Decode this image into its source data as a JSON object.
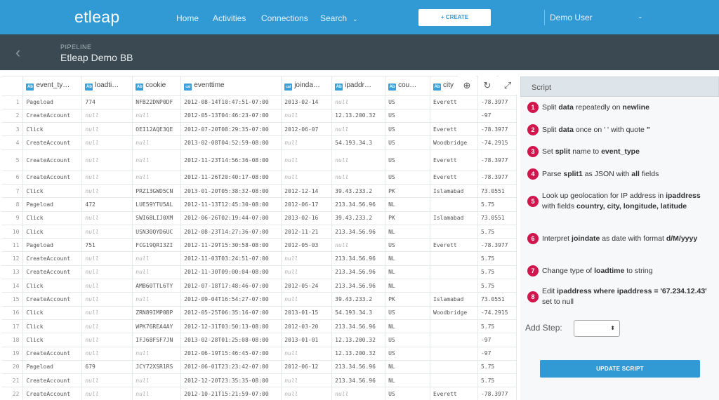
{
  "app": {
    "logo": "etleap",
    "nav": [
      "Home",
      "Activities",
      "Connections",
      "Search"
    ],
    "nav_search_chevron": "⌄",
    "create_label": "+ CREATE",
    "user": "Demo User",
    "user_chevron": "⌄"
  },
  "pipeline": {
    "back_icon": "‹",
    "label": "PIPELINE",
    "name": "Etleap Demo BB"
  },
  "grid": {
    "columns": [
      {
        "name": "event_ty…",
        "type": "Ab"
      },
      {
        "name": "loadti…",
        "type": "Ab"
      },
      {
        "name": "cookie",
        "type": "Ab"
      },
      {
        "name": "eventtime",
        "type": "cal"
      },
      {
        "name": "joinda…",
        "type": "cal"
      },
      {
        "name": "ipaddr…",
        "type": "Ab"
      },
      {
        "name": "cou…",
        "type": "Ab"
      },
      {
        "name": "city",
        "type": "Ab"
      }
    ],
    "tools": {
      "zoom": "⊕",
      "refresh": "↻",
      "expand": "⤢"
    },
    "rows": [
      [
        "1",
        "Pageload",
        "774",
        "NFB22DNP0DF",
        "2012-08-14T10:47:51-07:00",
        "2013-02-14",
        "null",
        "US",
        "Everett",
        "-78.3977"
      ],
      [
        "2",
        "CreateAccount",
        "null",
        "null",
        "2012-05-13T04:46:23-07:00",
        "null",
        "12.13.200.32",
        "US",
        "",
        "-97"
      ],
      [
        "3",
        "Click",
        "null",
        "OEI12AQE3QE",
        "2012-07-20T08:29:35-07:00",
        "2012-06-07",
        "null",
        "US",
        "Everett",
        "-78.3977"
      ],
      [
        "4",
        "CreateAccount",
        "null",
        "null",
        "2013-02-08T04:52:59-08:00",
        "null",
        "54.193.34.3",
        "US",
        "Woodbridge",
        "-74.2915"
      ],
      [
        "5",
        "CreateAccount",
        "null",
        "null",
        "2012-11-23T14:56:36-08:00",
        "null",
        "null",
        "US",
        "Everett",
        "-78.3977"
      ],
      [
        "6",
        "CreateAccount",
        "null",
        "null",
        "2012-11-26T20:40:17-08:00",
        "null",
        "null",
        "US",
        "Everett",
        "-78.3977"
      ],
      [
        "7",
        "Click",
        "null",
        "PRZ13GWD5CN",
        "2013-01-20T05:38:32-08:00",
        "2012-12-14",
        "39.43.233.2",
        "PK",
        "Islamabad",
        "73.0551"
      ],
      [
        "8",
        "Pageload",
        "472",
        "LUE59YTU5AL",
        "2012-11-13T12:45:30-08:00",
        "2012-06-17",
        "213.34.56.96",
        "NL",
        "",
        "5.75"
      ],
      [
        "9",
        "Click",
        "null",
        "SWI68LIJ0XM",
        "2012-06-26T02:19:44-07:00",
        "2013-02-16",
        "39.43.233.2",
        "PK",
        "Islamabad",
        "73.0551"
      ],
      [
        "10",
        "Click",
        "null",
        "USN30QYD6UC",
        "2012-08-23T14:27:36-07:00",
        "2012-11-21",
        "213.34.56.96",
        "NL",
        "",
        "5.75"
      ],
      [
        "11",
        "Pageload",
        "751",
        "FCG19QRI3ZI",
        "2012-11-29T15:30:58-08:00",
        "2012-05-03",
        "null",
        "US",
        "Everett",
        "-78.3977"
      ],
      [
        "12",
        "CreateAccount",
        "null",
        "null",
        "2012-11-03T03:24:51-07:00",
        "null",
        "213.34.56.96",
        "NL",
        "",
        "5.75"
      ],
      [
        "13",
        "CreateAccount",
        "null",
        "null",
        "2012-11-30T09:00:04-08:00",
        "null",
        "213.34.56.96",
        "NL",
        "",
        "5.75"
      ],
      [
        "14",
        "Click",
        "null",
        "AMB60TTL6TY",
        "2012-07-18T17:48:46-07:00",
        "2012-05-24",
        "213.34.56.96",
        "NL",
        "",
        "5.75"
      ],
      [
        "15",
        "CreateAccount",
        "null",
        "null",
        "2012-09-04T16:54:27-07:00",
        "null",
        "39.43.233.2",
        "PK",
        "Islamabad",
        "73.0551"
      ],
      [
        "16",
        "Click",
        "null",
        "ZRN89IMP0BP",
        "2012-05-25T06:35:16-07:00",
        "2013-01-15",
        "54.193.34.3",
        "US",
        "Woodbridge",
        "-74.2915"
      ],
      [
        "17",
        "Click",
        "null",
        "WPK76REA4AY",
        "2012-12-31T03:50:13-08:00",
        "2012-03-20",
        "213.34.56.96",
        "NL",
        "",
        "5.75"
      ],
      [
        "18",
        "Click",
        "null",
        "IFJ68FSF7JN",
        "2013-02-28T01:25:08-08:00",
        "2013-01-01",
        "12.13.200.32",
        "US",
        "",
        "-97"
      ],
      [
        "19",
        "CreateAccount",
        "null",
        "null",
        "2012-06-19T15:46:45-07:00",
        "null",
        "12.13.200.32",
        "US",
        "",
        "-97"
      ],
      [
        "20",
        "Pageload",
        "679",
        "JCY72XSR1RS",
        "2012-06-01T23:23:42-07:00",
        "2012-06-12",
        "213.34.56.96",
        "NL",
        "",
        "5.75"
      ],
      [
        "21",
        "CreateAccount",
        "null",
        "null",
        "2012-12-20T23:35:35-08:00",
        "null",
        "213.34.56.96",
        "NL",
        "",
        "5.75"
      ],
      [
        "22",
        "CreateAccount",
        "null",
        "null",
        "2012-10-21T15:21:59-07:00",
        "null",
        "null",
        "US",
        "Everett",
        "-78.3977"
      ]
    ]
  },
  "script": {
    "title": "Script",
    "steps": [
      {
        "num": "1",
        "parts": [
          [
            "Split ",
            false
          ],
          [
            "data",
            true
          ],
          [
            " repeatedly on ",
            false
          ],
          [
            "newline",
            true
          ]
        ]
      },
      {
        "num": "2",
        "parts": [
          [
            "Split ",
            false
          ],
          [
            "data",
            true
          ],
          [
            " once on ' ' with quote ",
            false
          ],
          [
            "\"",
            true
          ]
        ]
      },
      {
        "num": "3",
        "parts": [
          [
            "Set ",
            false
          ],
          [
            "split",
            true
          ],
          [
            " name to ",
            false
          ],
          [
            "event_type",
            true
          ]
        ]
      },
      {
        "num": "4",
        "parts": [
          [
            "Parse ",
            false
          ],
          [
            "split1",
            true
          ],
          [
            " as JSON with ",
            false
          ],
          [
            "all",
            true
          ],
          [
            " fields",
            false
          ]
        ]
      },
      {
        "num": "5",
        "parts": [
          [
            "Look up geolocation for IP address in ",
            false
          ],
          [
            "ipaddress",
            true
          ],
          [
            " with fields ",
            false
          ],
          [
            "country, city, longitude, latitude",
            true
          ]
        ]
      },
      {
        "num": "6",
        "parts": [
          [
            "Interpret ",
            false
          ],
          [
            "joindate",
            true
          ],
          [
            " as date with format ",
            false
          ],
          [
            "d/M/yyyy",
            true
          ]
        ]
      },
      {
        "num": "7",
        "parts": [
          [
            "Change type of ",
            false
          ],
          [
            "loadtime",
            true
          ],
          [
            " to string",
            false
          ]
        ]
      },
      {
        "num": "8",
        "parts": [
          [
            "Edit ",
            false
          ],
          [
            "ipaddress where ipaddress = '67.234.12.43'",
            true
          ],
          [
            " set to null",
            false
          ]
        ]
      }
    ],
    "add_step_label": "Add Step:",
    "add_step_chevron": "⬍",
    "update_label": "UPDATE SCRIPT"
  }
}
